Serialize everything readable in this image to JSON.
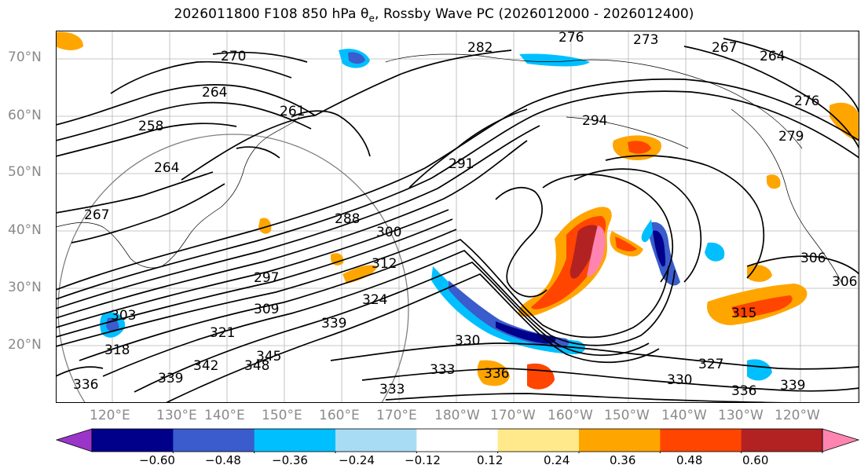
{
  "title": {
    "prefix": "2026011800 F108 850 hPa θ",
    "subscript": "e",
    "suffix": ", Rossby Wave PC (2026012000 - 2026012400)"
  },
  "lat_labels": [
    "70°N",
    "60°N",
    "50°N",
    "40°N",
    "30°N",
    "20°N"
  ],
  "lon_labels": [
    "120°E",
    "130°E",
    "140°E",
    "150°E",
    "160°E",
    "170°E",
    "180°W",
    "170°W",
    "160°W",
    "150°W",
    "140°W",
    "130°W",
    "120°W"
  ],
  "colorbar": {
    "ticks": [
      "−0.60",
      "−0.48",
      "−0.36",
      "−0.24",
      "−0.12",
      "0.12",
      "0.24",
      "0.36",
      "0.48",
      "0.60"
    ],
    "colors": [
      "#9b35c9",
      "#00008b",
      "#3a5ccc",
      "#00bfff",
      "#a8dcf5",
      "#ffffff",
      "#ffe98a",
      "#ffa500",
      "#ff4500",
      "#b22222",
      "#ff85b0"
    ]
  },
  "contour_labels": [
    "282",
    "276",
    "273",
    "267",
    "264",
    "270",
    "276",
    "279",
    "264",
    "261",
    "258",
    "264",
    "267",
    "291",
    "294",
    "288",
    "300",
    "312",
    "297",
    "309",
    "324",
    "339",
    "330",
    "333",
    "336",
    "333",
    "330",
    "327",
    "336",
    "339",
    "303",
    "318",
    "336",
    "339",
    "342",
    "345",
    "348",
    "321",
    "306",
    "306",
    "315"
  ]
}
